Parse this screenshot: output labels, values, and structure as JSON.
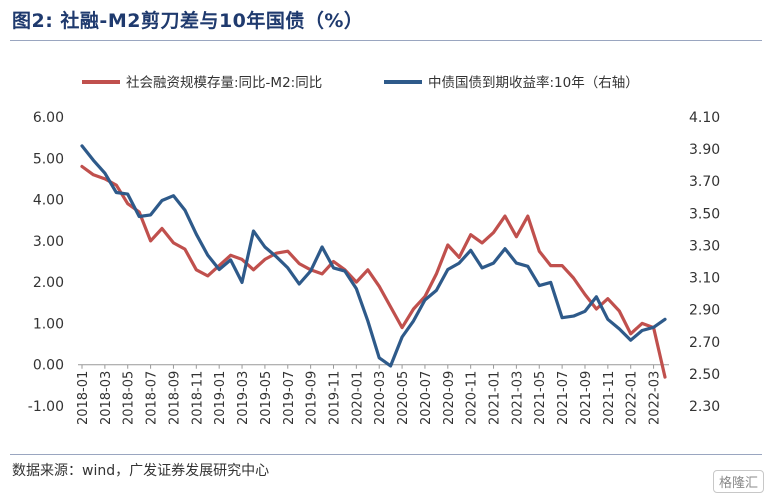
{
  "header": {
    "title": "图2:  社融-M2剪刀差与10年国债（%）"
  },
  "footer": {
    "source": "数据来源：wind，广发证券发展研究中心",
    "watermark": "格隆汇"
  },
  "colors": {
    "social": "#c0504d",
    "bond": "#2e5a8a",
    "title": "#1f3a6e"
  },
  "chart_data": {
    "type": "line",
    "legend_position": "top",
    "grid": false,
    "x_tick_labels": [
      "2018-01",
      "2018-03",
      "2018-05",
      "2018-07",
      "2018-09",
      "2018-11",
      "2019-01",
      "2019-03",
      "2019-05",
      "2019-07",
      "2019-09",
      "2019-11",
      "2020-01",
      "2020-03",
      "2020-05",
      "2020-07",
      "2020-09",
      "2020-11",
      "2021-01",
      "2021-03",
      "2021-05",
      "2021-07",
      "2021-09",
      "2021-11",
      "2022-01",
      "2022-03"
    ],
    "x": [
      "2018-01",
      "2018-02",
      "2018-03",
      "2018-04",
      "2018-05",
      "2018-06",
      "2018-07",
      "2018-08",
      "2018-09",
      "2018-10",
      "2018-11",
      "2018-12",
      "2019-01",
      "2019-02",
      "2019-03",
      "2019-04",
      "2019-05",
      "2019-06",
      "2019-07",
      "2019-08",
      "2019-09",
      "2019-10",
      "2019-11",
      "2019-12",
      "2020-01",
      "2020-02",
      "2020-03",
      "2020-04",
      "2020-05",
      "2020-06",
      "2020-07",
      "2020-08",
      "2020-09",
      "2020-10",
      "2020-11",
      "2020-12",
      "2021-01",
      "2021-02",
      "2021-03",
      "2021-04",
      "2021-05",
      "2021-06",
      "2021-07",
      "2021-08",
      "2021-09",
      "2021-10",
      "2021-11",
      "2021-12",
      "2022-01",
      "2022-02",
      "2022-03",
      "2022-04"
    ],
    "y_left": {
      "ticks": [
        "6.00",
        "5.00",
        "4.00",
        "3.00",
        "2.00",
        "1.00",
        "0.00",
        "-1.00"
      ],
      "ylim": [
        -1,
        6
      ]
    },
    "y_right": {
      "ticks": [
        "4.10",
        "3.90",
        "3.70",
        "3.50",
        "3.30",
        "3.10",
        "2.90",
        "2.70",
        "2.50",
        "2.30"
      ],
      "ylim": [
        2.3,
        4.1
      ]
    },
    "series": [
      {
        "name": "社会融资规模存量:同比-M2:同比",
        "axis": "left",
        "values": [
          4.8,
          4.6,
          4.5,
          4.35,
          3.9,
          3.7,
          3.0,
          3.3,
          2.95,
          2.8,
          2.3,
          2.15,
          2.4,
          2.65,
          2.55,
          2.3,
          2.55,
          2.7,
          2.75,
          2.45,
          2.3,
          2.2,
          2.5,
          2.3,
          2.0,
          2.3,
          1.9,
          1.4,
          0.9,
          1.35,
          1.65,
          2.2,
          2.9,
          2.6,
          3.15,
          2.95,
          3.2,
          3.6,
          3.1,
          3.6,
          2.75,
          2.4,
          2.4,
          2.1,
          1.7,
          1.35,
          1.6,
          1.3,
          0.75,
          1.0,
          0.9,
          -0.3
        ]
      },
      {
        "name": "中债国债到期收益率:10年（右轴）",
        "axis": "right",
        "values": [
          3.92,
          3.83,
          3.75,
          3.63,
          3.62,
          3.48,
          3.49,
          3.58,
          3.61,
          3.52,
          3.37,
          3.24,
          3.15,
          3.21,
          3.07,
          3.39,
          3.29,
          3.23,
          3.16,
          3.06,
          3.14,
          3.29,
          3.16,
          3.14,
          3.03,
          2.83,
          2.6,
          2.55,
          2.73,
          2.83,
          2.96,
          3.02,
          3.15,
          3.19,
          3.27,
          3.16,
          3.19,
          3.28,
          3.19,
          3.17,
          3.05,
          3.07,
          2.85,
          2.86,
          2.89,
          2.98,
          2.84,
          2.78,
          2.71,
          2.77,
          2.79,
          2.84
        ]
      }
    ]
  }
}
